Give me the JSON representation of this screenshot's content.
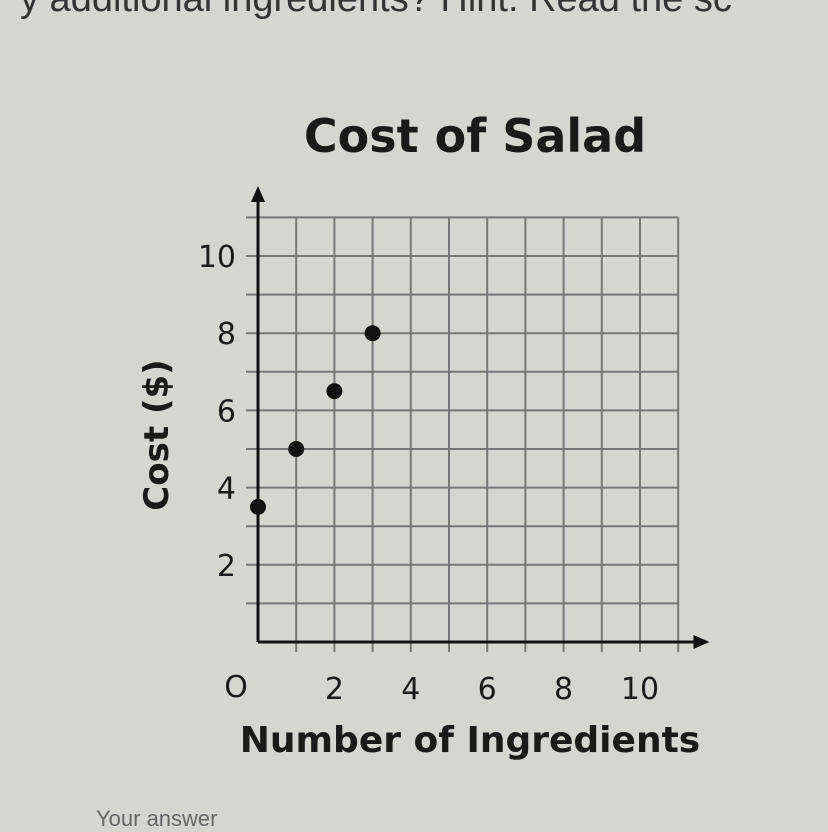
{
  "question_text": "y additional ingredients? Hint: Read the sc",
  "answer_label": "Your answer",
  "chart_data": {
    "type": "scatter",
    "title": "Cost of Salad",
    "xlabel": "Number of Ingredients",
    "ylabel": "Cost ($)",
    "origin_label": "O",
    "xlim": [
      0,
      11
    ],
    "ylim": [
      0,
      11
    ],
    "x_ticks": [
      "2",
      "4",
      "6",
      "8",
      "10"
    ],
    "y_ticks": [
      "2",
      "4",
      "6",
      "8",
      "10"
    ],
    "grid": true,
    "x": [
      0,
      1,
      2,
      3
    ],
    "y": [
      3.5,
      5,
      6.5,
      8
    ],
    "point_color": "#111111"
  }
}
